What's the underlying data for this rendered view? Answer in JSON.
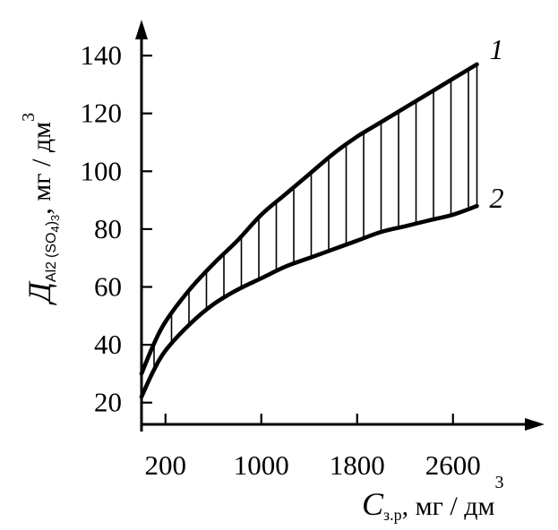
{
  "chart_data": {
    "type": "line",
    "title": "",
    "xlabel": {
      "symbol": "C",
      "subscript": "з.р",
      "separator": ",",
      "unit": "мг / дм",
      "unit_superscript": "3"
    },
    "ylabel": {
      "symbol": "Д",
      "subscript": "Al",
      "subscript_index": "2",
      "subscript_group": "(SO",
      "subscript_group_index": "4",
      "subscript_group_close": ")",
      "subscript_group_outer_index": "3",
      "separator": ",",
      "unit": "мг / дм",
      "unit_superscript": "3"
    },
    "x_ticks": [
      200,
      1000,
      1800,
      2600
    ],
    "x_tick_labels": [
      "200",
      "1000",
      "1800",
      "2600"
    ],
    "y_ticks": [
      20,
      40,
      60,
      80,
      100,
      120,
      140
    ],
    "y_tick_labels": [
      "20",
      "40",
      "60",
      "80",
      "100",
      "120",
      "140"
    ],
    "xlim": [
      0,
      3200
    ],
    "ylim": [
      10,
      155
    ],
    "series": [
      {
        "name": "1",
        "x": [
          0,
          100,
          200,
          400,
          600,
          800,
          1000,
          1200,
          1400,
          1600,
          1800,
          2000,
          2200,
          2400,
          2600,
          2800
        ],
        "y": [
          30,
          40,
          48,
          59,
          68,
          76,
          85,
          92,
          99,
          106,
          112,
          117,
          122,
          127,
          132,
          137
        ]
      },
      {
        "name": "2",
        "x": [
          0,
          100,
          200,
          400,
          600,
          800,
          1000,
          1200,
          1400,
          1600,
          1800,
          2000,
          2200,
          2400,
          2600,
          2800
        ],
        "y": [
          22,
          31,
          38,
          47,
          54,
          59,
          63,
          67,
          70,
          73,
          76,
          79,
          81,
          83,
          85,
          88
        ]
      }
    ],
    "shaded_between_series": true,
    "grid": false,
    "legend": "none"
  }
}
